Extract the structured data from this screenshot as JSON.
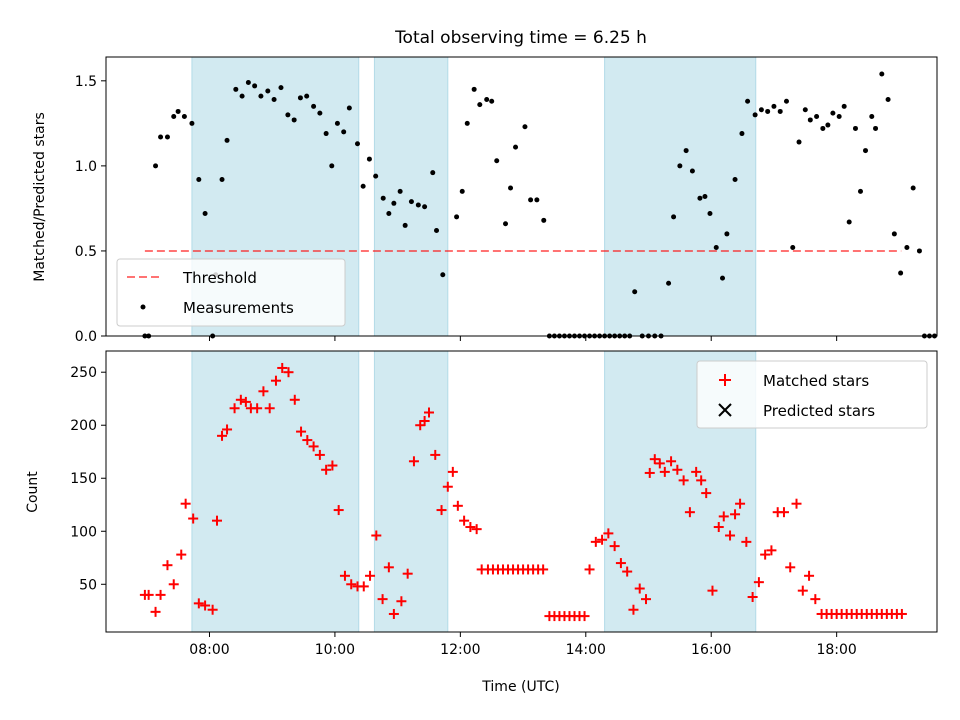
{
  "title": "Total observing time = 6.25 h",
  "colors": {
    "band": "#add8e6",
    "threshold": "#ff0000",
    "measurement": "#000000",
    "matched": "#ff0000",
    "predicted": "#000000"
  },
  "chart_data": [
    {
      "type": "scatter",
      "title": "Total observing time = 6.25 h",
      "ylabel": "Matched/Predicted stars",
      "xlim": [
        6.35,
        19.6
      ],
      "ylim": [
        0,
        1.64
      ],
      "yticks": [
        0.0,
        0.5,
        1.0,
        1.5
      ],
      "ytick_labels": [
        "0.0",
        "0.5",
        "1.0",
        "1.5"
      ],
      "xticks": [
        8,
        10,
        12,
        14,
        16,
        18
      ],
      "threshold": {
        "value": 0.5,
        "x": [
          6.97,
          19.03
        ],
        "label": "Threshold"
      },
      "legend": {
        "position": "lower-left",
        "entries": [
          "Threshold",
          "Measurements"
        ]
      },
      "shaded_intervals": [
        [
          7.72,
          10.38
        ],
        [
          10.63,
          11.8
        ],
        [
          14.3,
          16.71
        ]
      ],
      "series": [
        {
          "name": "Measurements",
          "points": [
            [
              6.97,
              0
            ],
            [
              7.03,
              0
            ],
            [
              7.14,
              1.0
            ],
            [
              7.22,
              1.17
            ],
            [
              7.33,
              1.17
            ],
            [
              7.43,
              1.29
            ],
            [
              7.5,
              1.32
            ],
            [
              7.6,
              1.29
            ],
            [
              7.72,
              1.25
            ],
            [
              7.83,
              0.92
            ],
            [
              7.93,
              0.72
            ],
            [
              8.05,
              0
            ],
            [
              8.1,
              0.36
            ],
            [
              8.2,
              0.92
            ],
            [
              8.28,
              1.15
            ],
            [
              8.42,
              1.45
            ],
            [
              8.52,
              1.41
            ],
            [
              8.62,
              1.49
            ],
            [
              8.72,
              1.47
            ],
            [
              8.82,
              1.41
            ],
            [
              8.93,
              1.44
            ],
            [
              9.03,
              1.39
            ],
            [
              9.14,
              1.46
            ],
            [
              9.25,
              1.3
            ],
            [
              9.35,
              1.27
            ],
            [
              9.45,
              1.4
            ],
            [
              9.55,
              1.41
            ],
            [
              9.66,
              1.35
            ],
            [
              9.76,
              1.31
            ],
            [
              9.86,
              1.19
            ],
            [
              9.95,
              1.0
            ],
            [
              10.04,
              1.25
            ],
            [
              10.14,
              1.2
            ],
            [
              10.23,
              1.34
            ],
            [
              10.36,
              1.13
            ],
            [
              10.45,
              0.88
            ],
            [
              10.55,
              1.04
            ],
            [
              10.65,
              0.94
            ],
            [
              10.77,
              0.81
            ],
            [
              10.86,
              0.72
            ],
            [
              10.94,
              0.78
            ],
            [
              11.04,
              0.85
            ],
            [
              11.12,
              0.65
            ],
            [
              11.22,
              0.79
            ],
            [
              11.33,
              0.77
            ],
            [
              11.43,
              0.76
            ],
            [
              11.56,
              0.96
            ],
            [
              11.62,
              0.62
            ],
            [
              11.72,
              0.36
            ],
            [
              11.94,
              0.7
            ],
            [
              12.03,
              0.85
            ],
            [
              12.11,
              1.25
            ],
            [
              12.22,
              1.45
            ],
            [
              12.31,
              1.36
            ],
            [
              12.42,
              1.39
            ],
            [
              12.5,
              1.38
            ],
            [
              12.58,
              1.03
            ],
            [
              12.72,
              0.66
            ],
            [
              12.8,
              0.87
            ],
            [
              12.88,
              1.11
            ],
            [
              13.03,
              1.23
            ],
            [
              13.12,
              0.8
            ],
            [
              13.22,
              0.8
            ],
            [
              13.33,
              0.68
            ],
            [
              13.42,
              0
            ],
            [
              13.5,
              0
            ],
            [
              13.58,
              0
            ],
            [
              13.66,
              0
            ],
            [
              13.74,
              0
            ],
            [
              13.82,
              0
            ],
            [
              13.9,
              0
            ],
            [
              13.98,
              0
            ],
            [
              14.06,
              0
            ],
            [
              14.14,
              0
            ],
            [
              14.22,
              0
            ],
            [
              14.3,
              0
            ],
            [
              14.38,
              0
            ],
            [
              14.46,
              0
            ],
            [
              14.54,
              0
            ],
            [
              14.62,
              0
            ],
            [
              14.7,
              0
            ],
            [
              14.78,
              0.26
            ],
            [
              14.9,
              0
            ],
            [
              15.0,
              0
            ],
            [
              15.1,
              0
            ],
            [
              15.2,
              0
            ],
            [
              15.32,
              0.31
            ],
            [
              15.4,
              0.7
            ],
            [
              15.5,
              1.0
            ],
            [
              15.6,
              1.09
            ],
            [
              15.7,
              0.97
            ],
            [
              15.82,
              0.81
            ],
            [
              15.9,
              0.82
            ],
            [
              15.98,
              0.72
            ],
            [
              16.08,
              0.52
            ],
            [
              16.18,
              0.34
            ],
            [
              16.25,
              0.6
            ],
            [
              16.38,
              0.92
            ],
            [
              16.49,
              1.19
            ],
            [
              16.58,
              1.38
            ],
            [
              16.7,
              1.3
            ],
            [
              16.8,
              1.33
            ],
            [
              16.9,
              1.32
            ],
            [
              17.0,
              1.35
            ],
            [
              17.1,
              1.32
            ],
            [
              17.2,
              1.38
            ],
            [
              17.3,
              0.52
            ],
            [
              17.4,
              1.14
            ],
            [
              17.5,
              1.33
            ],
            [
              17.58,
              1.27
            ],
            [
              17.68,
              1.29
            ],
            [
              17.78,
              1.22
            ],
            [
              17.86,
              1.24
            ],
            [
              17.94,
              1.31
            ],
            [
              18.04,
              1.29
            ],
            [
              18.12,
              1.35
            ],
            [
              18.2,
              0.67
            ],
            [
              18.3,
              1.22
            ],
            [
              18.38,
              0.85
            ],
            [
              18.46,
              1.09
            ],
            [
              18.56,
              1.29
            ],
            [
              18.62,
              1.22
            ],
            [
              18.72,
              1.54
            ],
            [
              18.82,
              1.39
            ],
            [
              18.92,
              0.6
            ],
            [
              19.02,
              0.37
            ],
            [
              19.12,
              0.52
            ],
            [
              19.22,
              0.87
            ],
            [
              19.32,
              0.5
            ],
            [
              19.4,
              0
            ],
            [
              19.48,
              0
            ],
            [
              19.56,
              0
            ]
          ]
        }
      ]
    },
    {
      "type": "scatter",
      "xlabel": "Time (UTC)",
      "ylabel": "Count",
      "xlim": [
        6.35,
        19.6
      ],
      "ylim": [
        5,
        270
      ],
      "yticks": [
        50,
        100,
        150,
        200,
        250
      ],
      "ytick_labels": [
        "50",
        "100",
        "150",
        "200",
        "250"
      ],
      "xticks": [
        8,
        10,
        12,
        14,
        16,
        18
      ],
      "xtick_labels": [
        "08:00",
        "10:00",
        "12:00",
        "14:00",
        "16:00",
        "18:00"
      ],
      "legend": {
        "position": "top-right",
        "entries": [
          "Matched stars",
          "Predicted stars"
        ]
      },
      "shaded_intervals": [
        [
          7.72,
          10.38
        ],
        [
          10.63,
          11.8
        ],
        [
          14.3,
          16.71
        ]
      ],
      "series": []
    }
  ],
  "bottom_raw": {
    "matched": [
      [
        6.97,
        40
      ],
      [
        7.03,
        40
      ],
      [
        7.14,
        24
      ],
      [
        7.22,
        40
      ],
      [
        7.33,
        68
      ],
      [
        7.43,
        50
      ],
      [
        7.55,
        78
      ],
      [
        7.62,
        126
      ],
      [
        7.74,
        112
      ],
      [
        7.83,
        32
      ],
      [
        7.93,
        30
      ],
      [
        8.05,
        26
      ],
      [
        8.12,
        110
      ],
      [
        8.2,
        190
      ],
      [
        8.28,
        196
      ],
      [
        8.4,
        216
      ],
      [
        8.5,
        224
      ],
      [
        8.58,
        222
      ],
      [
        8.66,
        216
      ],
      [
        8.76,
        216
      ],
      [
        8.86,
        232
      ],
      [
        8.96,
        216
      ],
      [
        9.06,
        242
      ],
      [
        9.16,
        254
      ],
      [
        9.26,
        250
      ],
      [
        9.36,
        224
      ],
      [
        9.46,
        194
      ],
      [
        9.56,
        186
      ],
      [
        9.66,
        180
      ],
      [
        9.76,
        172
      ],
      [
        9.86,
        158
      ],
      [
        9.96,
        162
      ],
      [
        10.06,
        120
      ],
      [
        10.16,
        58
      ],
      [
        10.26,
        50
      ],
      [
        10.36,
        48
      ],
      [
        10.46,
        48
      ],
      [
        10.56,
        58
      ],
      [
        10.66,
        96
      ],
      [
        10.76,
        36
      ],
      [
        10.86,
        66
      ],
      [
        10.94,
        22
      ],
      [
        11.06,
        34
      ],
      [
        11.16,
        60
      ],
      [
        11.26,
        166
      ],
      [
        11.36,
        200
      ],
      [
        11.43,
        204
      ],
      [
        11.5,
        212
      ],
      [
        11.6,
        172
      ],
      [
        11.7,
        120
      ],
      [
        11.8,
        142
      ],
      [
        11.88,
        156
      ],
      [
        11.96,
        124
      ],
      [
        12.06,
        110
      ],
      [
        12.16,
        104
      ],
      [
        12.26,
        102
      ],
      [
        12.34,
        64
      ],
      [
        12.44,
        64
      ],
      [
        12.52,
        64
      ],
      [
        12.6,
        64
      ],
      [
        12.68,
        64
      ],
      [
        12.76,
        64
      ],
      [
        12.84,
        64
      ],
      [
        12.92,
        64
      ],
      [
        13.0,
        64
      ],
      [
        13.08,
        64
      ],
      [
        13.16,
        64
      ],
      [
        13.24,
        64
      ],
      [
        13.32,
        64
      ],
      [
        13.42,
        20
      ],
      [
        13.5,
        20
      ],
      [
        13.58,
        20
      ],
      [
        13.66,
        20
      ],
      [
        13.74,
        20
      ],
      [
        13.82,
        20
      ],
      [
        13.9,
        20
      ],
      [
        13.98,
        20
      ],
      [
        14.06,
        64
      ],
      [
        14.16,
        90
      ],
      [
        14.26,
        92
      ],
      [
        14.36,
        98
      ],
      [
        14.46,
        86
      ],
      [
        14.56,
        70
      ],
      [
        14.66,
        62
      ],
      [
        14.76,
        26
      ],
      [
        14.86,
        46
      ],
      [
        14.96,
        36
      ],
      [
        15.02,
        155
      ],
      [
        15.1,
        168
      ],
      [
        15.18,
        164
      ],
      [
        15.26,
        156
      ],
      [
        15.36,
        166
      ],
      [
        15.46,
        158
      ],
      [
        15.56,
        148
      ],
      [
        15.66,
        118
      ],
      [
        15.76,
        156
      ],
      [
        15.84,
        148
      ],
      [
        15.92,
        136
      ],
      [
        16.02,
        44
      ],
      [
        16.12,
        104
      ],
      [
        16.2,
        114
      ],
      [
        16.3,
        96
      ],
      [
        16.38,
        116
      ],
      [
        16.46,
        126
      ],
      [
        16.56,
        90
      ],
      [
        16.66,
        38
      ],
      [
        16.76,
        52
      ],
      [
        16.86,
        78
      ],
      [
        16.96,
        82
      ],
      [
        17.06,
        118
      ],
      [
        17.16,
        118
      ],
      [
        17.26,
        66
      ],
      [
        17.36,
        126
      ],
      [
        17.46,
        44
      ],
      [
        17.56,
        58
      ],
      [
        17.66,
        36
      ],
      [
        17.76,
        22
      ],
      [
        17.84,
        22
      ],
      [
        17.92,
        22
      ],
      [
        18.0,
        22
      ],
      [
        18.08,
        22
      ],
      [
        18.16,
        22
      ],
      [
        18.24,
        22
      ],
      [
        18.32,
        22
      ],
      [
        18.4,
        22
      ],
      [
        18.48,
        22
      ],
      [
        18.56,
        22
      ],
      [
        18.64,
        22
      ],
      [
        18.72,
        22
      ],
      [
        18.8,
        22
      ],
      [
        18.88,
        22
      ],
      [
        18.96,
        22
      ],
      [
        19.04,
        22
      ]
    ],
    "predicted": []
  }
}
